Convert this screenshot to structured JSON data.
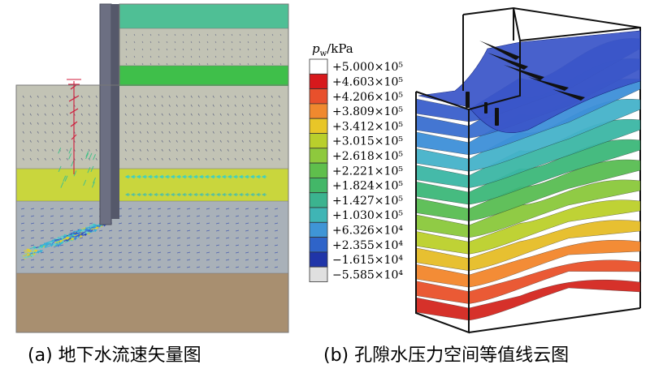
{
  "panel_a": {
    "caption": "(a) 地下水流速矢量图",
    "soil_colors": {
      "top_teal": "#4fbf95",
      "gray_layer": "#c2c3b5",
      "green_band": "#3fbf4a",
      "yellow_layer": "#c9d63d",
      "blue_gray_layer": "#a9b1b9",
      "brown_base": "#a88f70",
      "wall": "#6c6f82"
    }
  },
  "panel_b": {
    "caption": "(b) 孔隙水压力空间等值线云图",
    "legend": {
      "title_symbol": "p",
      "title_subscript": "w",
      "title_unit": "/kPa",
      "entries": [
        {
          "label": "+5.000×10⁵",
          "color": "#ffffff"
        },
        {
          "label": "+4.603×10⁵",
          "color": "#d7191c"
        },
        {
          "label": "+4.206×10⁵",
          "color": "#e8502c"
        },
        {
          "label": "+3.809×10⁵",
          "color": "#f0892e"
        },
        {
          "label": "+3.412×10⁵",
          "color": "#e8c628"
        },
        {
          "label": "+3.015×10⁵",
          "color": "#b9cf2c"
        },
        {
          "label": "+2.618×10⁵",
          "color": "#8ec93d"
        },
        {
          "label": "+2.221×10⁵",
          "color": "#5fbf4c"
        },
        {
          "label": "+1.824×10⁵",
          "color": "#43b768"
        },
        {
          "label": "+1.427×10⁵",
          "color": "#3bb38f"
        },
        {
          "label": "+1.030×10⁵",
          "color": "#3fb5b5"
        },
        {
          "label": "+6.326×10⁴",
          "color": "#3f95d6"
        },
        {
          "label": "+2.355×10⁴",
          "color": "#2f64c9"
        },
        {
          "label": "−1.615×10⁴",
          "color": "#2035a8"
        },
        {
          "label": "−5.585×10⁴",
          "color": "#e0e0e0"
        }
      ]
    },
    "contour_colors": [
      "#d4261f",
      "#e9512a",
      "#f2862b",
      "#e6bd26",
      "#bcd02a",
      "#8ac83b",
      "#58bd52",
      "#3cb779",
      "#3bb6a4",
      "#44b2c9",
      "#3d8fd8",
      "#3a6fd0",
      "#3a5fcb"
    ]
  }
}
